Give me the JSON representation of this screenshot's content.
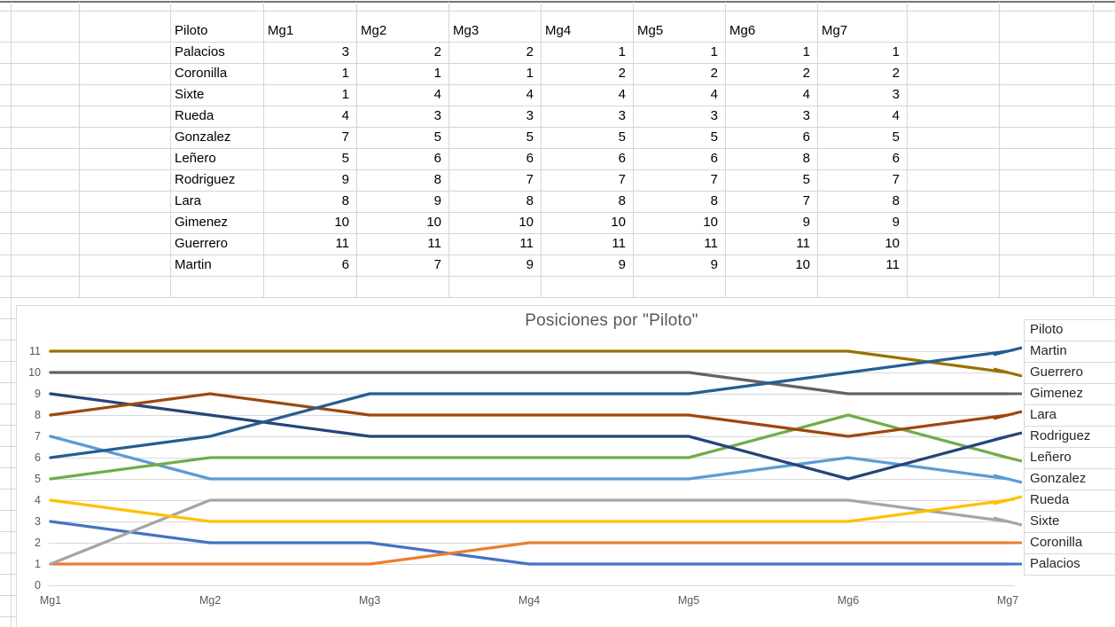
{
  "sheet": {
    "header": [
      "Piloto",
      "Mg1",
      "Mg2",
      "Mg3",
      "Mg4",
      "Mg5",
      "Mg6",
      "Mg7"
    ],
    "rows": [
      {
        "piloto": "Palacios",
        "values": [
          3,
          2,
          2,
          1,
          1,
          1,
          1
        ]
      },
      {
        "piloto": "Coronilla",
        "values": [
          1,
          1,
          1,
          2,
          2,
          2,
          2
        ]
      },
      {
        "piloto": "Sixte",
        "values": [
          1,
          4,
          4,
          4,
          4,
          4,
          3
        ]
      },
      {
        "piloto": "Rueda",
        "values": [
          4,
          3,
          3,
          3,
          3,
          3,
          4
        ]
      },
      {
        "piloto": "Gonzalez",
        "values": [
          7,
          5,
          5,
          5,
          5,
          6,
          5
        ]
      },
      {
        "piloto": "Leñero",
        "values": [
          5,
          6,
          6,
          6,
          6,
          8,
          6
        ]
      },
      {
        "piloto": "Rodriguez",
        "values": [
          9,
          8,
          7,
          7,
          7,
          5,
          7
        ]
      },
      {
        "piloto": "Lara",
        "values": [
          8,
          9,
          8,
          8,
          8,
          7,
          8
        ]
      },
      {
        "piloto": "Gimenez",
        "values": [
          10,
          10,
          10,
          10,
          10,
          9,
          9
        ]
      },
      {
        "piloto": "Guerrero",
        "values": [
          11,
          11,
          11,
          11,
          11,
          11,
          10
        ]
      },
      {
        "piloto": "Martin",
        "values": [
          6,
          7,
          9,
          9,
          9,
          10,
          11
        ]
      }
    ]
  },
  "chart_data": {
    "type": "line",
    "title": "Posiciones por \"Piloto\"",
    "categories": [
      "Mg1",
      "Mg2",
      "Mg3",
      "Mg4",
      "Mg5",
      "Mg6",
      "Mg7"
    ],
    "series": [
      {
        "name": "Palacios",
        "color": "#4472C4",
        "values": [
          3,
          2,
          2,
          1,
          1,
          1,
          1
        ]
      },
      {
        "name": "Coronilla",
        "color": "#ED7D31",
        "values": [
          1,
          1,
          1,
          2,
          2,
          2,
          2
        ]
      },
      {
        "name": "Sixte",
        "color": "#A5A5A5",
        "values": [
          1,
          4,
          4,
          4,
          4,
          4,
          3
        ]
      },
      {
        "name": "Rueda",
        "color": "#FFC000",
        "values": [
          4,
          3,
          3,
          3,
          3,
          3,
          4
        ]
      },
      {
        "name": "Gonzalez",
        "color": "#5B9BD5",
        "values": [
          7,
          5,
          5,
          5,
          5,
          6,
          5
        ]
      },
      {
        "name": "Leñero",
        "color": "#70AD47",
        "values": [
          5,
          6,
          6,
          6,
          6,
          8,
          6
        ]
      },
      {
        "name": "Rodriguez",
        "color": "#264478",
        "values": [
          9,
          8,
          7,
          7,
          7,
          5,
          7
        ]
      },
      {
        "name": "Lara",
        "color": "#9E480E",
        "values": [
          8,
          9,
          8,
          8,
          8,
          7,
          8
        ]
      },
      {
        "name": "Gimenez",
        "color": "#636363",
        "values": [
          10,
          10,
          10,
          10,
          10,
          9,
          9
        ]
      },
      {
        "name": "Guerrero",
        "color": "#997300",
        "values": [
          11,
          11,
          11,
          11,
          11,
          11,
          10
        ]
      },
      {
        "name": "Martin",
        "color": "#255E91",
        "values": [
          6,
          7,
          9,
          9,
          9,
          10,
          11
        ]
      }
    ],
    "ylim": [
      0,
      11
    ],
    "yticks": [
      0,
      1,
      2,
      3,
      4,
      5,
      6,
      7,
      8,
      9,
      10,
      11
    ],
    "grid": true,
    "legend_title": "Piloto",
    "legend_position": "right",
    "legend_order": [
      "Martin",
      "Guerrero",
      "Gimenez",
      "Lara",
      "Rodriguez",
      "Leñero",
      "Gonzalez",
      "Rueda",
      "Sixte",
      "Coronilla",
      "Palacios"
    ],
    "colors": {
      "gridline": "#D9D9D9",
      "axis_text": "#595959",
      "title_text": "#595959",
      "legend_text": "#262626",
      "sheet_gridline": "#D6D6D6",
      "sheet_top_border": "#757575"
    }
  }
}
